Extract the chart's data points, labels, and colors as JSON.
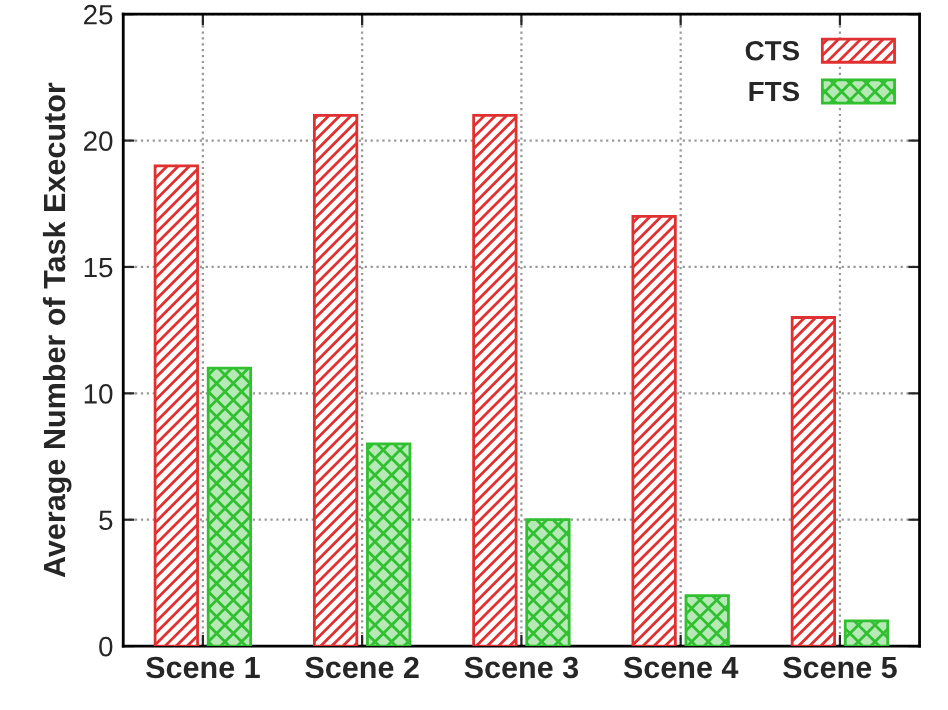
{
  "chart_data": {
    "type": "bar",
    "ylabel": "Average Number of Task Executor",
    "categories": [
      "Scene 1",
      "Scene 2",
      "Scene 3",
      "Scene 4",
      "Scene 5"
    ],
    "series": [
      {
        "name": "CTS",
        "color": "#e03030",
        "values": [
          19,
          21,
          21,
          17,
          13
        ]
      },
      {
        "name": "FTS",
        "color": "#30c030",
        "values": [
          11,
          8,
          5,
          2,
          1
        ]
      }
    ],
    "ylim": [
      0,
      25
    ],
    "yticks": [
      0,
      5,
      10,
      15,
      20,
      25
    ],
    "grid": true,
    "legend": "top right"
  }
}
